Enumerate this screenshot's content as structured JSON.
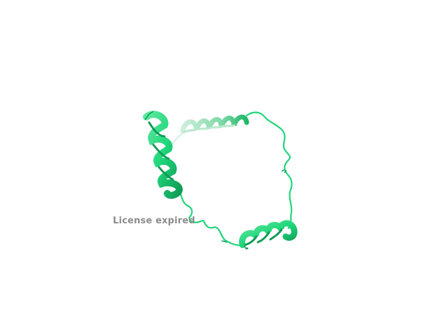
{
  "viewer": {
    "watermark_text": "License expired",
    "background_color": "#ffffff",
    "watermark_color": "#8c8c8c"
  },
  "structure": {
    "representation": "cartoon",
    "color": "#1fd67a",
    "color_dark": "#0f9c55",
    "color_light": "#7fe0ad",
    "elements": [
      "helix-left",
      "helix-top",
      "helix-bottom",
      "loop-right",
      "loop-lower-left"
    ]
  }
}
